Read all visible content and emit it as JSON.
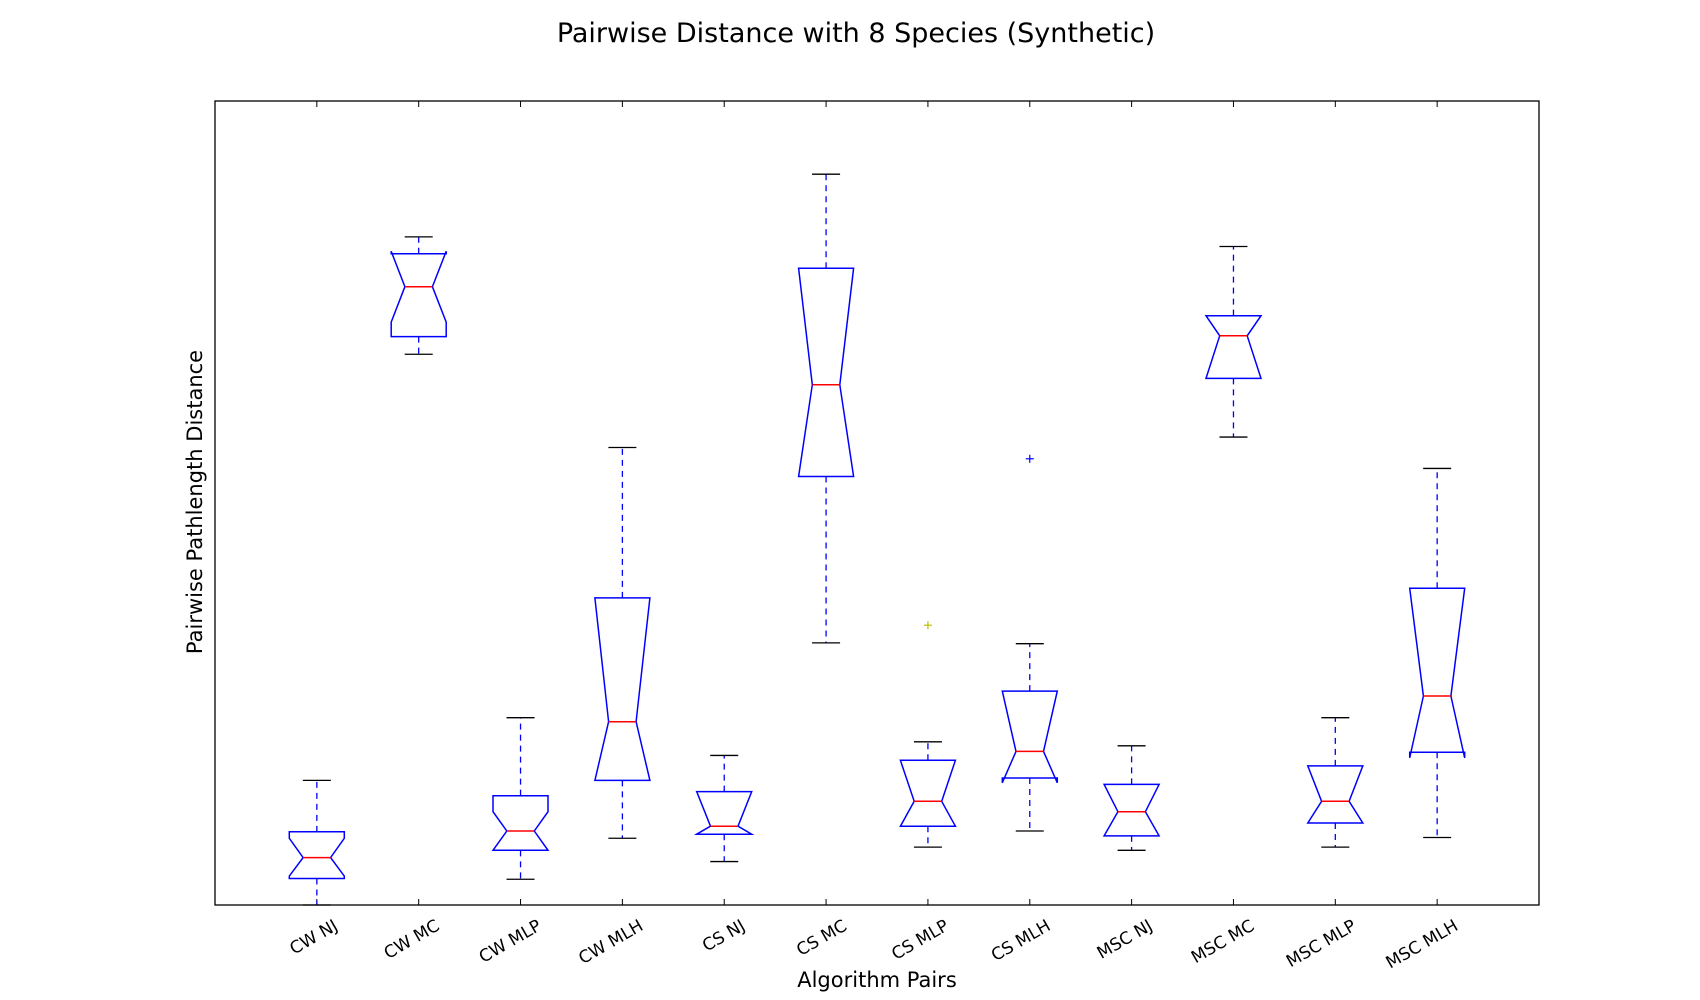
{
  "chart_data": {
    "type": "boxplot",
    "title": "Pairwise Distance with 8 Species (Synthetic)",
    "xlabel": "Algorithm Pairs",
    "ylabel": "Pairwise Pathlength Distance",
    "ylim": [
      0,
      100
    ],
    "grid": false,
    "notched": true,
    "y_tick_labels_visible": false,
    "colors": {
      "box": "#0000ff",
      "median": "#ff0000",
      "whisker": "#0000ff",
      "cap": "#000000",
      "outlier": "#0000ff",
      "outlier_alt": "#bfbf00",
      "frame": "#000000"
    },
    "categories": [
      "CW NJ",
      "CW MC",
      "CW MLP",
      "CW MLH",
      "CS NJ",
      "CS MC",
      "CS MLP",
      "CS MLH",
      "MSC NJ",
      "MSC MC",
      "MSC MLP",
      "MSC MLH"
    ],
    "boxes": [
      {
        "label": "CW NJ",
        "whislo": 0.0,
        "q1": 3.3,
        "median": 5.9,
        "q3": 9.1,
        "whishi": 15.5,
        "notch_lo": 3.6,
        "notch_hi": 8.3,
        "fliers": []
      },
      {
        "label": "CW MC",
        "whislo": 68.5,
        "q1": 70.7,
        "median": 76.9,
        "q3": 81.0,
        "whishi": 83.1,
        "notch_lo": 72.5,
        "notch_hi": 81.3,
        "fliers": []
      },
      {
        "label": "CW MLP",
        "whislo": 3.2,
        "q1": 6.8,
        "median": 9.2,
        "q3": 13.6,
        "whishi": 23.3,
        "notch_lo": 6.8,
        "notch_hi": 11.6,
        "fliers": []
      },
      {
        "label": "CW MLH",
        "whislo": 8.3,
        "q1": 15.5,
        "median": 22.8,
        "q3": 38.2,
        "whishi": 56.9,
        "notch_lo": 15.5,
        "notch_hi": 38.2,
        "fliers": []
      },
      {
        "label": "CS NJ",
        "whislo": 5.4,
        "q1": 8.8,
        "median": 9.8,
        "q3": 14.1,
        "whishi": 18.6,
        "notch_lo": 8.8,
        "notch_hi": 14.1,
        "fliers": []
      },
      {
        "label": "CS MC",
        "whislo": 32.6,
        "q1": 53.3,
        "median": 64.7,
        "q3": 79.2,
        "whishi": 90.9,
        "notch_lo": 53.3,
        "notch_hi": 79.2,
        "fliers": []
      },
      {
        "label": "CS MLP",
        "whislo": 7.2,
        "q1": 9.8,
        "median": 12.9,
        "q3": 18.0,
        "whishi": 20.3,
        "notch_lo": 9.8,
        "notch_hi": 18.0,
        "fliers": [
          34.8
        ]
      },
      {
        "label": "CS MLH",
        "whislo": 9.2,
        "q1": 15.8,
        "median": 19.1,
        "q3": 26.6,
        "whishi": 32.5,
        "notch_lo": 15.2,
        "notch_hi": 26.6,
        "fliers": [
          55.5
        ]
      },
      {
        "label": "MSC NJ",
        "whislo": 6.8,
        "q1": 8.6,
        "median": 11.6,
        "q3": 15.0,
        "whishi": 19.8,
        "notch_lo": 8.6,
        "notch_hi": 15.0,
        "fliers": []
      },
      {
        "label": "MSC MC",
        "whislo": 58.2,
        "q1": 65.5,
        "median": 70.8,
        "q3": 73.3,
        "whishi": 81.9,
        "notch_lo": 65.5,
        "notch_hi": 73.3,
        "fliers": []
      },
      {
        "label": "MSC MLP",
        "whislo": 7.2,
        "q1": 10.2,
        "median": 12.9,
        "q3": 17.3,
        "whishi": 23.3,
        "notch_lo": 10.2,
        "notch_hi": 17.3,
        "fliers": []
      },
      {
        "label": "MSC MLH",
        "whislo": 8.4,
        "q1": 19.0,
        "median": 26.0,
        "q3": 39.4,
        "whishi": 54.3,
        "notch_lo": 18.3,
        "notch_hi": 39.4,
        "fliers": []
      }
    ]
  }
}
